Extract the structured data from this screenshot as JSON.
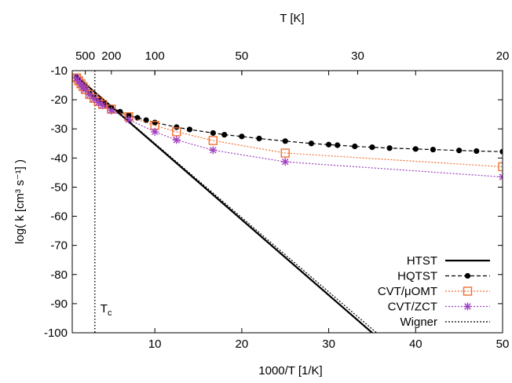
{
  "chart_data": {
    "type": "line",
    "title": "",
    "xlabel": "1000/T [1/K]",
    "ylabel": "log( k [cm³ s⁻¹] )",
    "x2label": "T [K]",
    "xlim": [
      0.5,
      50
    ],
    "ylim": [
      -100,
      -10
    ],
    "x_ticks": [
      10,
      20,
      30,
      40,
      50
    ],
    "y_ticks": [
      -10,
      -20,
      -30,
      -40,
      -50,
      -60,
      -70,
      -80,
      -90,
      -100
    ],
    "top_ticks": [
      {
        "label": "500",
        "T": 500
      },
      {
        "label": "200",
        "T": 200
      },
      {
        "label": "100",
        "T": 100
      },
      {
        "label": "50",
        "T": 50
      },
      {
        "label": "30",
        "T": 30
      },
      {
        "label": "20",
        "T": 20
      }
    ],
    "vline": {
      "x": 3.1,
      "label": "T",
      "label_sub": "c"
    },
    "legend_position": "bottom-right",
    "series": [
      {
        "name": "HTST",
        "color": "#000000",
        "style": "solid",
        "marker": "none",
        "x": [
          1,
          35
        ],
        "y": [
          -12,
          -100
        ]
      },
      {
        "name": "HQTST",
        "color": "#000000",
        "style": "dashed",
        "marker": "filled-circle",
        "x": [
          1,
          1.25,
          1.5,
          1.75,
          2,
          2.5,
          3,
          3.5,
          4,
          4.5,
          5,
          6,
          7,
          8,
          9,
          10,
          12.5,
          14,
          16.7,
          18,
          20,
          22,
          25,
          28,
          30,
          31,
          33,
          35,
          37,
          40,
          42,
          45,
          47,
          50
        ],
        "y": [
          -12.3,
          -13.3,
          -14.3,
          -15.3,
          -16.2,
          -17.8,
          -19,
          -20.1,
          -21,
          -21.9,
          -22.7,
          -24.1,
          -25.3,
          -26.2,
          -27,
          -27.8,
          -29.4,
          -30.2,
          -31.4,
          -32,
          -32.6,
          -33.3,
          -34.2,
          -35,
          -35.4,
          -35.6,
          -36,
          -36.3,
          -36.6,
          -36.9,
          -37.1,
          -37.4,
          -37.6,
          -37.8
        ]
      },
      {
        "name": "CVT/μOMT",
        "color": "#f07030",
        "style": "dotted",
        "marker": "open-square",
        "x": [
          1,
          1.25,
          1.5,
          1.75,
          2,
          2.5,
          3,
          3.5,
          4,
          5,
          7,
          10,
          12.5,
          16.7,
          25,
          50
        ],
        "y": [
          -12.5,
          -13.5,
          -14.5,
          -15.5,
          -16.5,
          -18.2,
          -19.5,
          -20.6,
          -21.6,
          -23.2,
          -25.8,
          -28.8,
          -31,
          -34,
          -38.3,
          -43
        ]
      },
      {
        "name": "CVT/ZCT",
        "color": "#a040c0",
        "style": "dotted",
        "marker": "star",
        "x": [
          1,
          1.25,
          1.5,
          1.75,
          2,
          2.5,
          3,
          3.5,
          4,
          5,
          7,
          10,
          12.5,
          16.7,
          25,
          50
        ],
        "y": [
          -12.5,
          -13.5,
          -14.5,
          -15.5,
          -16.5,
          -18.3,
          -19.7,
          -20.9,
          -21.9,
          -23.7,
          -26.8,
          -31,
          -33.8,
          -37.3,
          -41.3,
          -46.5
        ]
      },
      {
        "name": "Wigner",
        "color": "#000000",
        "style": "dotted",
        "marker": "none",
        "x": [
          1,
          35.5
        ],
        "y": [
          -12,
          -100
        ]
      }
    ]
  }
}
